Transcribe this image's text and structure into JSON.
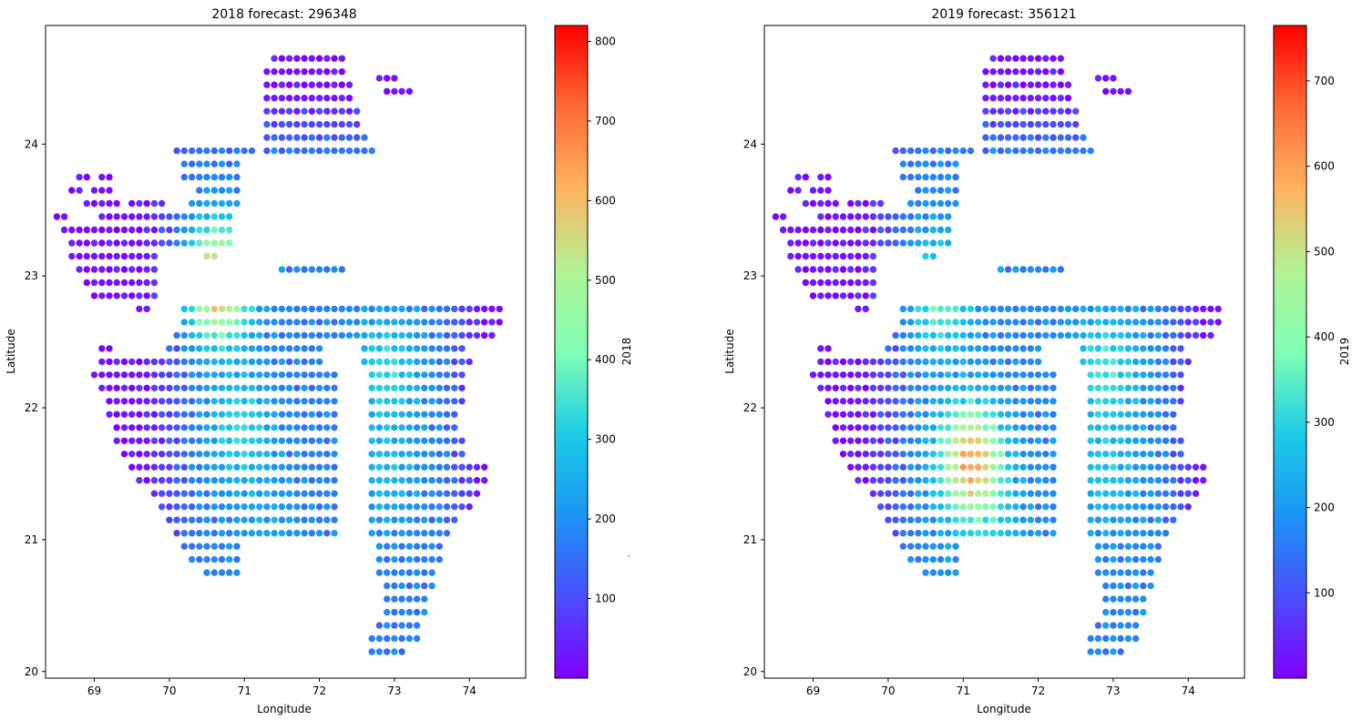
{
  "chart_data": [
    {
      "type": "scatter",
      "title": "2018 forecast: 296348",
      "xlabel": "Longitude",
      "ylabel": "Latitude",
      "xlim": [
        68.35,
        74.75
      ],
      "ylim": [
        19.95,
        24.9
      ],
      "xticks": [
        "69",
        "70",
        "71",
        "72",
        "73",
        "74"
      ],
      "yticks": [
        "20",
        "21",
        "22",
        "23",
        "24"
      ],
      "colormap": "rainbow",
      "colorbar": {
        "label": "2018",
        "min": 0,
        "max": 820,
        "ticks": [
          "100",
          "200",
          "300",
          "400",
          "500",
          "600",
          "700",
          "800"
        ]
      },
      "hotspots": [
        [
          70.65,
          22.95,
          500
        ],
        [
          70.95,
          21.85,
          160
        ],
        [
          72.9,
          22.3,
          160
        ],
        [
          72.9,
          21.5,
          100
        ],
        [
          71.3,
          21.1,
          60
        ]
      ]
    },
    {
      "type": "scatter",
      "title": "2019 forecast: 356121",
      "xlabel": "Longitude",
      "ylabel": "Latitude",
      "xlim": [
        68.35,
        74.75
      ],
      "ylim": [
        19.95,
        24.9
      ],
      "xticks": [
        "69",
        "70",
        "71",
        "72",
        "73",
        "74"
      ],
      "yticks": [
        "20",
        "21",
        "22",
        "23",
        "24"
      ],
      "colormap": "rainbow",
      "colorbar": {
        "label": "2019",
        "min": 0,
        "max": 765,
        "ticks": [
          "100",
          "200",
          "300",
          "400",
          "500",
          "600",
          "700"
        ]
      },
      "hotspots": [
        [
          71.1,
          21.6,
          430
        ],
        [
          70.7,
          22.85,
          200
        ],
        [
          72.9,
          22.3,
          160
        ],
        [
          72.9,
          21.5,
          100
        ],
        [
          71.4,
          21.0,
          80
        ]
      ]
    }
  ]
}
